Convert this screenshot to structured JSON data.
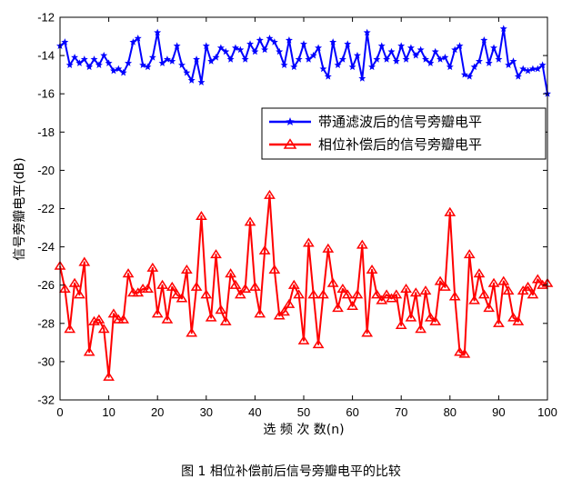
{
  "caption": "图 1  相位补偿前后信号旁瓣电平的比较",
  "chart_data": {
    "type": "line",
    "xlabel": "选 频 次 数(n)",
    "ylabel": "信号旁瓣电平(dB)",
    "xlim": [
      0,
      100
    ],
    "ylim": [
      -32,
      -12
    ],
    "xticks": [
      0,
      10,
      20,
      30,
      40,
      50,
      60,
      70,
      80,
      90,
      100
    ],
    "yticks": [
      -12,
      -14,
      -16,
      -18,
      -20,
      -22,
      -24,
      -26,
      -28,
      -30,
      -32
    ],
    "grid": false,
    "legend_position": "upper-right",
    "series": [
      {
        "name": "带通滤波后的信号旁瓣电平",
        "color": "#0000ff",
        "marker": "star",
        "values": [
          -13.5,
          -13.3,
          -14.5,
          -14.1,
          -14.4,
          -14.2,
          -14.6,
          -14.2,
          -14.5,
          -14.0,
          -14.4,
          -14.8,
          -14.7,
          -14.9,
          -14.4,
          -13.3,
          -13.1,
          -14.5,
          -14.6,
          -14.1,
          -12.8,
          -14.4,
          -14.2,
          -14.3,
          -13.5,
          -14.5,
          -14.9,
          -15.3,
          -14.2,
          -15.4,
          -13.5,
          -14.3,
          -14.1,
          -13.6,
          -13.8,
          -14.2,
          -13.6,
          -13.7,
          -14.2,
          -13.4,
          -13.8,
          -13.2,
          -13.7,
          -13.1,
          -13.3,
          -13.8,
          -14.5,
          -13.2,
          -14.6,
          -14.2,
          -13.4,
          -14.2,
          -14.0,
          -13.6,
          -14.7,
          -15.1,
          -13.3,
          -14.5,
          -14.2,
          -13.4,
          -14.6,
          -14.0,
          -15.2,
          -12.8,
          -14.6,
          -14.2,
          -13.5,
          -14.2,
          -13.8,
          -14.3,
          -13.5,
          -14.2,
          -13.6,
          -14.0,
          -13.7,
          -14.2,
          -14.4,
          -13.8,
          -14.2,
          -14.1,
          -14.6,
          -13.7,
          -13.5,
          -15.0,
          -15.1,
          -14.6,
          -14.3,
          -13.2,
          -14.4,
          -13.6,
          -14.2,
          -12.6,
          -14.5,
          -14.3,
          -15.1,
          -14.7,
          -14.8,
          -14.7,
          -14.7,
          -14.5,
          -16.0
        ]
      },
      {
        "name": "相位补偿后的信号旁瓣电平",
        "color": "#ff0000",
        "marker": "triangle",
        "values": [
          -25.0,
          -26.2,
          -28.3,
          -25.9,
          -26.5,
          -24.8,
          -29.5,
          -27.9,
          -27.8,
          -28.3,
          -30.8,
          -27.5,
          -27.8,
          -27.8,
          -25.4,
          -26.4,
          -26.4,
          -26.2,
          -26.2,
          -25.1,
          -27.5,
          -26.0,
          -27.8,
          -26.1,
          -26.5,
          -26.7,
          -25.2,
          -28.5,
          -26.1,
          -22.4,
          -26.5,
          -27.7,
          -24.4,
          -27.3,
          -27.9,
          -25.4,
          -26.0,
          -26.5,
          -26.2,
          -22.7,
          -26.1,
          -27.5,
          -24.2,
          -21.3,
          -25.2,
          -27.6,
          -27.4,
          -27.0,
          -26.0,
          -26.5,
          -28.9,
          -23.8,
          -26.5,
          -29.1,
          -26.5,
          -24.1,
          -25.9,
          -27.2,
          -26.2,
          -26.5,
          -27.1,
          -26.5,
          -23.9,
          -28.5,
          -25.2,
          -26.5,
          -26.8,
          -26.5,
          -26.7,
          -26.5,
          -28.1,
          -26.2,
          -27.7,
          -26.4,
          -28.3,
          -26.3,
          -27.7,
          -27.9,
          -25.8,
          -26.1,
          -22.2,
          -26.6,
          -29.5,
          -29.6,
          -24.4,
          -26.8,
          -25.4,
          -26.5,
          -27.2,
          -25.9,
          -28.0,
          -25.8,
          -26.3,
          -27.7,
          -27.9,
          -26.3,
          -26.1,
          -26.5,
          -25.7,
          -26.0,
          -25.9
        ]
      }
    ]
  }
}
